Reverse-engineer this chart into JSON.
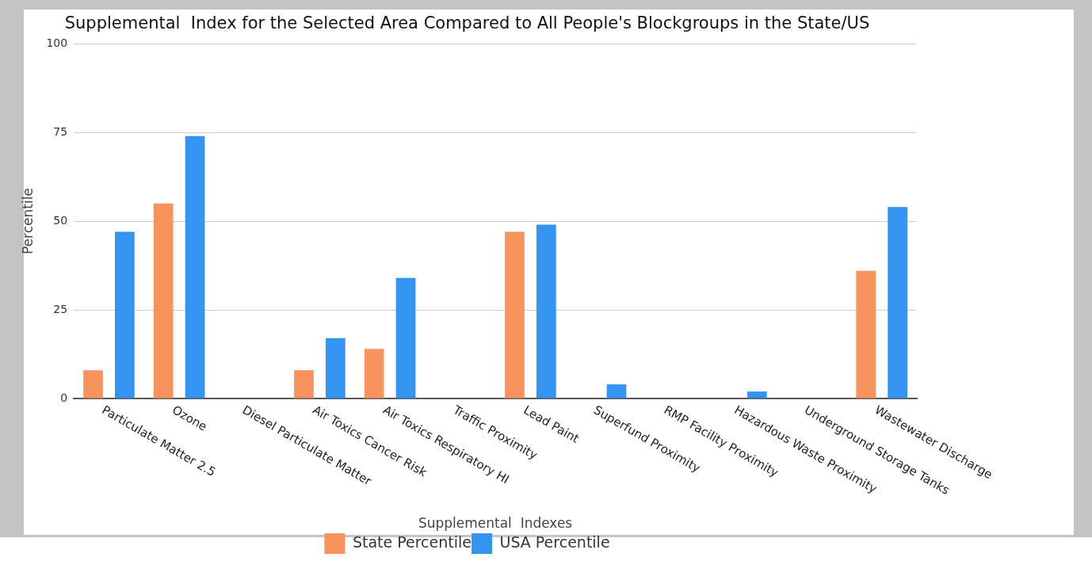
{
  "chart_data": {
    "type": "bar",
    "title": "Supplemental  Index for the Selected Area Compared to All People's Blockgroups in the State/US",
    "xlabel": "Supplemental  Indexes",
    "ylabel": "Percentile",
    "categories": [
      "Particulate Matter 2.5",
      "Ozone",
      "Diesel Particulate Matter",
      "Air Toxics Cancer Risk",
      "Air Toxics Respiratory HI",
      "Traffic Proximity",
      "Lead Paint",
      "Superfund Proximity",
      "RMP Facility Proximity",
      "Hazardous Waste Proximity",
      "Underground Storage Tanks",
      "Wastewater Discharge"
    ],
    "series": [
      {
        "name": "State Percentile",
        "color": "#f7935c",
        "values": [
          8,
          55,
          0,
          8,
          14,
          0,
          47,
          0,
          0,
          0,
          0,
          36
        ]
      },
      {
        "name": "USA Percentile",
        "color": "#3394f2",
        "values": [
          47,
          74,
          0,
          17,
          34,
          0,
          49,
          4,
          0,
          2,
          0,
          54
        ]
      }
    ],
    "ylim": [
      0,
      100
    ],
    "yticks": [
      0,
      25,
      50,
      75,
      100
    ],
    "grid": "y",
    "legend": "bottom"
  }
}
